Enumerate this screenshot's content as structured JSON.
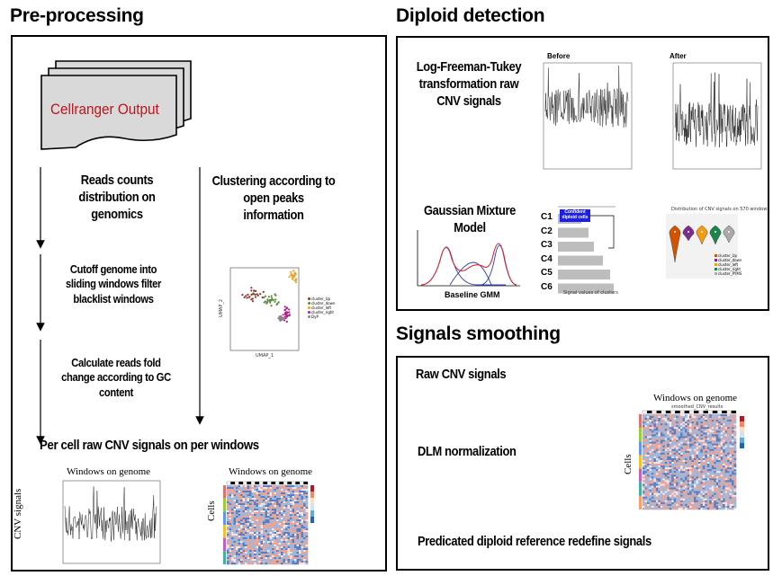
{
  "sections": {
    "preprocessing": "Pre-processing",
    "diploid": "Diploid detection",
    "smoothing": "Signals smoothing"
  },
  "pre": {
    "cellranger": "Cellranger Output",
    "reads_counts": "Reads counts distribution on genomics",
    "cutoff": "Cutoff genome into sliding windows filter blacklist windows",
    "gc": "Calculate reads fold change according to GC content",
    "clustering": "Clustering according to open peaks information",
    "per_cell": "Per cell raw CNV signals on per windows",
    "plot1_title": "Windows on genome",
    "plot1_ylabel": "CNV signals",
    "plot2_title": "Windows on genome",
    "plot2_ylabel": "Cells",
    "umap_legend": [
      "cluster_Up",
      "cluster_down",
      "cluster_left",
      "cluster_right",
      "DyP"
    ],
    "umap_xlabel": "UMAP_1",
    "umap_ylabel": "UMAP_2"
  },
  "diploid": {
    "lft": "Log-Freeman-Tukey transformation raw CNV signals",
    "before": "Before",
    "after": "After",
    "gmm": "Gaussian Mixture Model",
    "baseline": "Baseline GMM",
    "clusters": [
      "C1",
      "C2",
      "C3",
      "C4",
      "C5",
      "C6"
    ],
    "confident": "Confident diploid cells",
    "bar_xlabel": "Signal values of clusters",
    "violin_title": "Distribution of CNV signals on 570 windows",
    "violin_legend": [
      "cluster_Up",
      "cluster_down",
      "cluster_left",
      "cluster_right",
      "cluster_PYMS"
    ]
  },
  "smooth": {
    "raw": "Raw CNV signals",
    "dlm": "DLM normalization",
    "predicated": "Predicated diploid reference redefine signals",
    "heat_title": "Windows on genome",
    "heat_subtitle": "smoothed_CNV_results",
    "heat_ylabel": "Cells"
  },
  "colors": {
    "cellranger_text": "#c0141b",
    "gmm_red": "#e0262b",
    "gmm_blue": "#2a3fc0",
    "confident_bg": "#1d1df0",
    "heat_red": "#d6604d",
    "heat_blue": "#2166ac"
  }
}
